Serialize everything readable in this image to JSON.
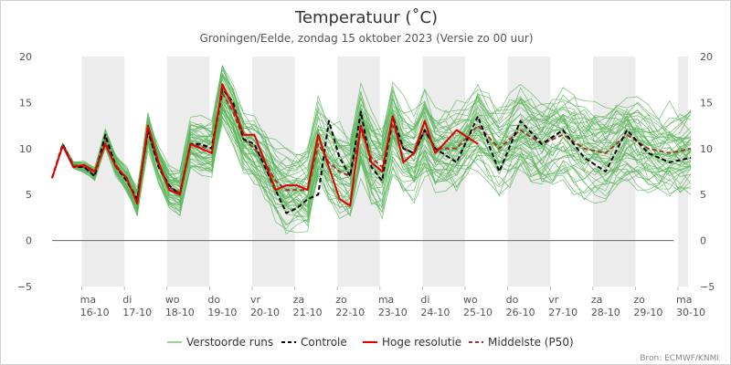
{
  "chart_data": {
    "type": "line",
    "title": "Temperatuur (˚C)",
    "subtitle": "Groningen/Eelde, zondag 15 oktober 2023 (Versie zo 00 uur)",
    "credit": "Bron: ECMWF/KNMI",
    "ylim": [
      -5,
      20
    ],
    "yticks": [
      -5,
      0,
      5,
      10,
      15,
      20
    ],
    "xlim": [
      0,
      15
    ],
    "grid": true,
    "legend_position": "bottom",
    "x_days": [
      {
        "day": "ma",
        "date": "16-10"
      },
      {
        "day": "di",
        "date": "17-10"
      },
      {
        "day": "wo",
        "date": "18-10"
      },
      {
        "day": "do",
        "date": "19-10"
      },
      {
        "day": "vr",
        "date": "20-10"
      },
      {
        "day": "za",
        "date": "21-10"
      },
      {
        "day": "zo",
        "date": "22-10"
      },
      {
        "day": "ma",
        "date": "23-10"
      },
      {
        "day": "di",
        "date": "24-10"
      },
      {
        "day": "wo",
        "date": "25-10"
      },
      {
        "day": "do",
        "date": "26-10"
      },
      {
        "day": "vr",
        "date": "27-10"
      },
      {
        "day": "za",
        "date": "28-10"
      },
      {
        "day": "zo",
        "date": "29-10"
      },
      {
        "day": "ma",
        "date": "30-10"
      }
    ],
    "series": [
      {
        "name": "Controle",
        "color": "#000000",
        "style": "dashed",
        "x": [
          0,
          0.25,
          0.5,
          0.75,
          1.0,
          1.25,
          1.5,
          1.75,
          2.0,
          2.25,
          2.5,
          2.75,
          3.0,
          3.25,
          3.5,
          3.75,
          4.0,
          4.25,
          4.5,
          4.75,
          5.0,
          5.25,
          5.5,
          5.75,
          6.0,
          6.25,
          6.5,
          6.75,
          7.0,
          7.25,
          7.5,
          7.75,
          8.0,
          8.25,
          8.5,
          8.75,
          9.0,
          9.5,
          10.0,
          10.5,
          11.0,
          11.5,
          12.0,
          12.5,
          13.0,
          13.5,
          14.0,
          14.5,
          15.0
        ],
        "values": [
          6.8,
          10.5,
          8.0,
          8.0,
          7.0,
          11.5,
          8.0,
          6.5,
          4.5,
          12.0,
          8.0,
          6.0,
          5.0,
          10.5,
          10.5,
          10.0,
          16.5,
          15.0,
          11.0,
          10.5,
          8.0,
          5.5,
          3.0,
          3.5,
          4.5,
          5.0,
          13.0,
          9.0,
          7.0,
          14.0,
          8.0,
          6.5,
          13.5,
          10.0,
          9.5,
          12.0,
          10.0,
          8.5,
          13.5,
          7.5,
          13.0,
          10.5,
          12.0,
          9.0,
          7.5,
          12.0,
          9.5,
          8.5,
          9.0
        ]
      },
      {
        "name": "Hoge resolutie",
        "color": "#e00000",
        "style": "solid",
        "x": [
          0,
          0.25,
          0.5,
          0.75,
          1.0,
          1.25,
          1.5,
          1.75,
          2.0,
          2.25,
          2.5,
          2.75,
          3.0,
          3.25,
          3.5,
          3.75,
          4.0,
          4.25,
          4.5,
          4.75,
          5.0,
          5.25,
          5.5,
          5.75,
          6.0,
          6.25,
          6.5,
          6.75,
          7.0,
          7.25,
          7.5,
          7.75,
          8.0,
          8.25,
          8.5,
          8.75,
          9.0,
          9.5,
          10.0
        ],
        "values": [
          6.8,
          10.3,
          8.0,
          8.2,
          7.5,
          10.5,
          8.0,
          6.8,
          4.0,
          12.5,
          8.5,
          5.5,
          5.0,
          10.5,
          10.0,
          9.5,
          17.0,
          14.5,
          11.5,
          11.5,
          8.5,
          5.5,
          6.0,
          6.0,
          5.5,
          11.5,
          8.0,
          4.5,
          3.8,
          12.5,
          8.5,
          7.5,
          13.5,
          8.5,
          9.5,
          13.0,
          9.5,
          12.0,
          10.5
        ]
      },
      {
        "name": "Middelste (P50)",
        "color": "#9b3a2e",
        "style": "dashed",
        "x": [
          0,
          0.25,
          0.5,
          0.75,
          1.0,
          1.25,
          1.5,
          1.75,
          2.0,
          2.25,
          2.5,
          2.75,
          3.0,
          3.25,
          3.5,
          3.75,
          4.0,
          4.25,
          4.5,
          4.75,
          5.0,
          5.25,
          5.5,
          5.75,
          6.0,
          6.25,
          6.5,
          6.75,
          7.0,
          7.25,
          7.5,
          7.75,
          8.0,
          8.25,
          8.5,
          8.75,
          9.0,
          9.5,
          10.0,
          10.5,
          11.0,
          11.5,
          12.0,
          12.5,
          13.0,
          13.5,
          14.0,
          14.5,
          15.0
        ],
        "values": [
          6.8,
          10.4,
          8.2,
          8.0,
          7.2,
          11.0,
          8.2,
          6.6,
          4.3,
          12.0,
          8.3,
          5.8,
          5.2,
          10.5,
          10.2,
          10.0,
          16.0,
          14.0,
          11.0,
          10.0,
          8.5,
          6.5,
          5.5,
          5.5,
          5.5,
          10.5,
          8.5,
          7.5,
          7.0,
          12.0,
          9.0,
          8.0,
          12.5,
          10.0,
          9.5,
          12.0,
          10.0,
          10.0,
          12.5,
          10.0,
          12.0,
          10.5,
          11.5,
          10.0,
          9.5,
          11.5,
          10.0,
          9.5,
          10.0
        ]
      }
    ],
    "ensemble": {
      "name": "Verstoorde runs",
      "color": "#5bb55b",
      "member_count": 50
    },
    "legend": [
      "Verstoorde runs",
      "Controle",
      "Hoge resolutie",
      "Middelste (P50)"
    ]
  }
}
